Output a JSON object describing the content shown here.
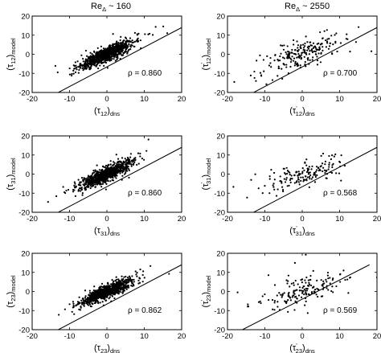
{
  "column_titles": [
    {
      "main": "Re",
      "sub": "Δ",
      "tail": " ~ 160"
    },
    {
      "main": "Re",
      "sub": "Δ",
      "tail": " ~ 2550"
    }
  ],
  "chart_data": [
    {
      "type": "scatter",
      "column": 0,
      "row": 0,
      "xlim": [
        -20,
        20
      ],
      "ylim": [
        -20,
        20
      ],
      "xticks": [
        -20,
        -10,
        0,
        10,
        20
      ],
      "yticks": [
        -20,
        -10,
        0,
        10,
        20
      ],
      "xlabel": {
        "base": "(τ",
        "sub": "12",
        "close": ")",
        "suffix": "dns",
        "prime": false
      },
      "ylabel": {
        "base": "(τ",
        "sub": "12",
        "close": ")",
        "suffix": "model",
        "prime": false
      },
      "rho_label": "ρ = 0.860",
      "fit_line": [
        [
          -13,
          -20
        ],
        [
          20,
          14
        ]
      ],
      "points": {
        "count": 900,
        "std": 3.5,
        "corr": 0.86,
        "spread": 1.0,
        "seed": 11
      }
    },
    {
      "type": "scatter",
      "column": 1,
      "row": 0,
      "xlim": [
        -20,
        20
      ],
      "ylim": [
        -20,
        20
      ],
      "xticks": [
        -20,
        -10,
        0,
        10,
        20
      ],
      "yticks": [
        -20,
        -10,
        0,
        10,
        20
      ],
      "xlabel": {
        "base": "(τ",
        "sub": "12",
        "close": ")",
        "suffix": "dns",
        "prime": true
      },
      "ylabel": {
        "base": "(τ",
        "sub": "12",
        "close": ")",
        "suffix": "model",
        "prime": true
      },
      "rho_label": "ρ = 0.700",
      "fit_line": [
        [
          -13,
          -20
        ],
        [
          20,
          14
        ]
      ],
      "points": {
        "count": 220,
        "std": 5.0,
        "corr": 0.7,
        "spread": 1.0,
        "seed": 23
      }
    },
    {
      "type": "scatter",
      "column": 0,
      "row": 1,
      "xlim": [
        -20,
        20
      ],
      "ylim": [
        -20,
        20
      ],
      "xticks": [
        -20,
        -10,
        0,
        10,
        20
      ],
      "yticks": [
        -20,
        -10,
        0,
        10,
        20
      ],
      "xlabel": {
        "base": "(τ",
        "sub": "31",
        "close": ")",
        "suffix": "dns",
        "prime": false
      },
      "ylabel": {
        "base": "(τ",
        "sub": "31",
        "close": ")",
        "suffix": "model",
        "prime": false
      },
      "rho_label": "ρ = 0.860",
      "fit_line": [
        [
          -13,
          -20
        ],
        [
          20,
          14
        ]
      ],
      "points": {
        "count": 900,
        "std": 3.5,
        "corr": 0.86,
        "spread": 1.0,
        "seed": 37
      }
    },
    {
      "type": "scatter",
      "column": 1,
      "row": 1,
      "xlim": [
        -20,
        20
      ],
      "ylim": [
        -20,
        20
      ],
      "xticks": [
        -20,
        -10,
        0,
        10,
        20
      ],
      "yticks": [
        -20,
        -10,
        0,
        10,
        20
      ],
      "xlabel": {
        "base": "(τ",
        "sub": "31",
        "close": ")",
        "suffix": "dns",
        "prime": true
      },
      "ylabel": {
        "base": "(τ",
        "sub": "31",
        "close": ")",
        "suffix": "model",
        "prime": true
      },
      "rho_label": "ρ = 0.568",
      "fit_line": [
        [
          -13,
          -20
        ],
        [
          20,
          14
        ]
      ],
      "points": {
        "count": 160,
        "std": 5.0,
        "corr": 0.568,
        "spread": 0.8,
        "seed": 41
      }
    },
    {
      "type": "scatter",
      "column": 0,
      "row": 2,
      "xlim": [
        -20,
        20
      ],
      "ylim": [
        -20,
        20
      ],
      "xticks": [
        -20,
        -10,
        0,
        10,
        20
      ],
      "yticks": [
        -20,
        -10,
        0,
        10,
        20
      ],
      "xlabel": {
        "base": "(τ",
        "sub": "23",
        "close": ")",
        "suffix": "dns",
        "prime": false
      },
      "ylabel": {
        "base": "(τ",
        "sub": "23",
        "close": ")",
        "suffix": "model",
        "prime": false
      },
      "rho_label": "ρ = 0.862",
      "fit_line": [
        [
          -13,
          -20
        ],
        [
          20,
          14
        ]
      ],
      "points": {
        "count": 900,
        "std": 3.5,
        "corr": 0.862,
        "spread": 1.0,
        "seed": 53
      }
    },
    {
      "type": "scatter",
      "column": 1,
      "row": 2,
      "xlim": [
        -20,
        20
      ],
      "ylim": [
        -20,
        20
      ],
      "xticks": [
        -20,
        -10,
        0,
        10,
        20
      ],
      "yticks": [
        -20,
        -10,
        0,
        10,
        20
      ],
      "xlabel": {
        "base": "(τ",
        "sub": "23",
        "close": ")",
        "suffix": "dns",
        "prime": true
      },
      "ylabel": {
        "base": "(τ",
        "sub": "23",
        "close": ")",
        "suffix": "model",
        "prime": true
      },
      "rho_label": "ρ = 0.569",
      "fit_line": [
        [
          -16,
          -20
        ],
        [
          18,
          14
        ]
      ],
      "points": {
        "count": 170,
        "std": 5.0,
        "corr": 0.569,
        "spread": 0.8,
        "seed": 67
      }
    }
  ]
}
